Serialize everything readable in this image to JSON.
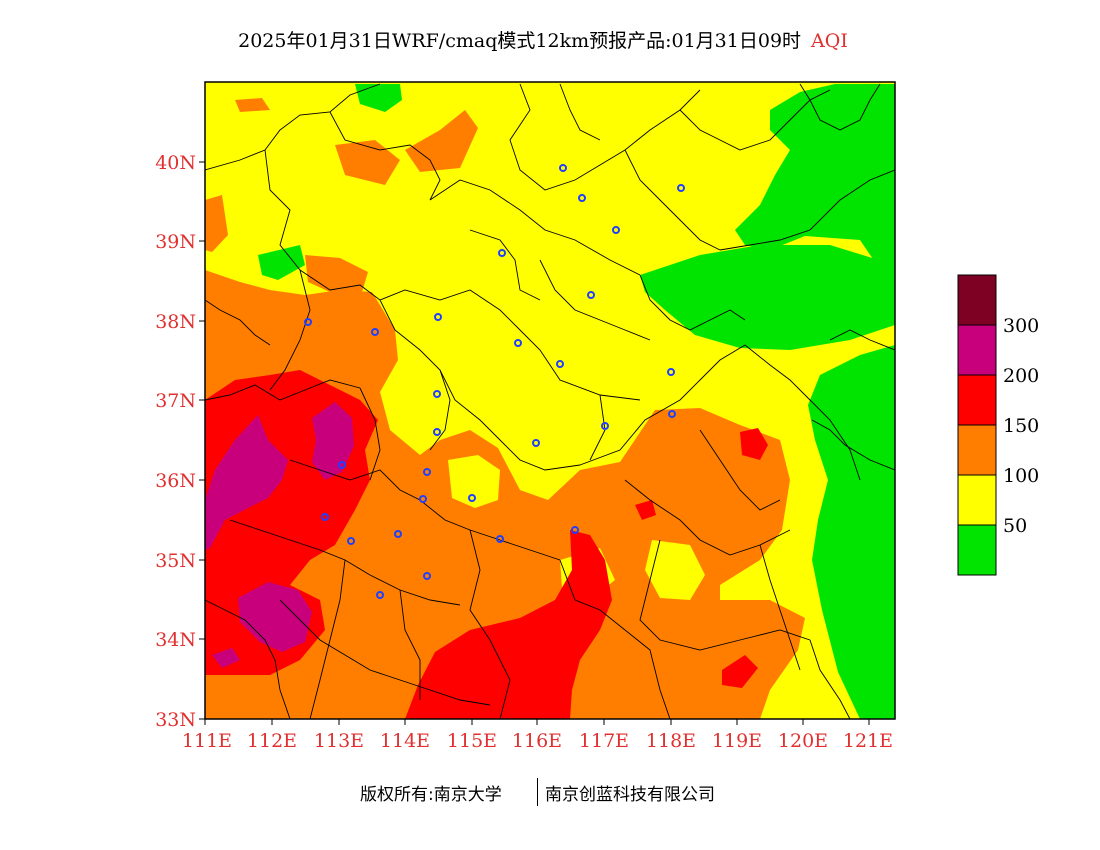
{
  "title": {
    "main": "2025年01月31日WRF/cmaq模式12km预报产品:01月31日09时",
    "tag": "AQI"
  },
  "map": {
    "lat_labels": [
      "40N",
      "39N",
      "38N",
      "37N",
      "36N",
      "35N",
      "34N",
      "33N"
    ],
    "lon_labels": [
      "111E",
      "112E",
      "113E",
      "114E",
      "115E",
      "116E",
      "117E",
      "118E",
      "119E",
      "120E",
      "121E"
    ],
    "label_color": "#e03030"
  },
  "legend": {
    "labels": [
      "50",
      "100",
      "150",
      "200",
      "300"
    ],
    "colors": [
      "#00e400",
      "#ffff00",
      "#ff7e00",
      "#ff0000",
      "#c8007c",
      "#7e0023"
    ]
  },
  "footer": {
    "left": "版权所有:南京大学",
    "right": "南京创蓝科技有限公司"
  }
}
